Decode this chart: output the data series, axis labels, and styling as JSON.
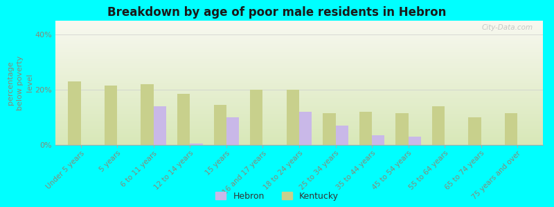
{
  "title": "Breakdown by age of poor male residents in Hebron",
  "ylabel": "percentage\nbelow poverty\nlevel",
  "categories": [
    "Under 5 years",
    "5 years",
    "6 to 11 years",
    "12 to 14 years",
    "15 years",
    "16 and 17 years",
    "18 to 24 years",
    "25 to 34 years",
    "35 to 44 years",
    "45 to 54 years",
    "55 to 64 years",
    "65 to 74 years",
    "75 years and over"
  ],
  "hebron": [
    0,
    0,
    14,
    0.5,
    10,
    0,
    12,
    7,
    3.5,
    3,
    0,
    0,
    0
  ],
  "kentucky": [
    23,
    21.5,
    22,
    18.5,
    14.5,
    20,
    20,
    11.5,
    12,
    11.5,
    14,
    10,
    11.5
  ],
  "hebron_color": "#c9b8e8",
  "kentucky_color": "#c8d08c",
  "background_color": "#00ffff",
  "plot_bg_color": "#f0f4e0",
  "title_color": "#1a1a1a",
  "bar_width": 0.35,
  "ylim": [
    0,
    45
  ],
  "yticks": [
    0,
    20,
    40
  ],
  "ytick_labels": [
    "0%",
    "20%",
    "40%"
  ],
  "label_color": "#888877",
  "watermark": "City-Data.com"
}
